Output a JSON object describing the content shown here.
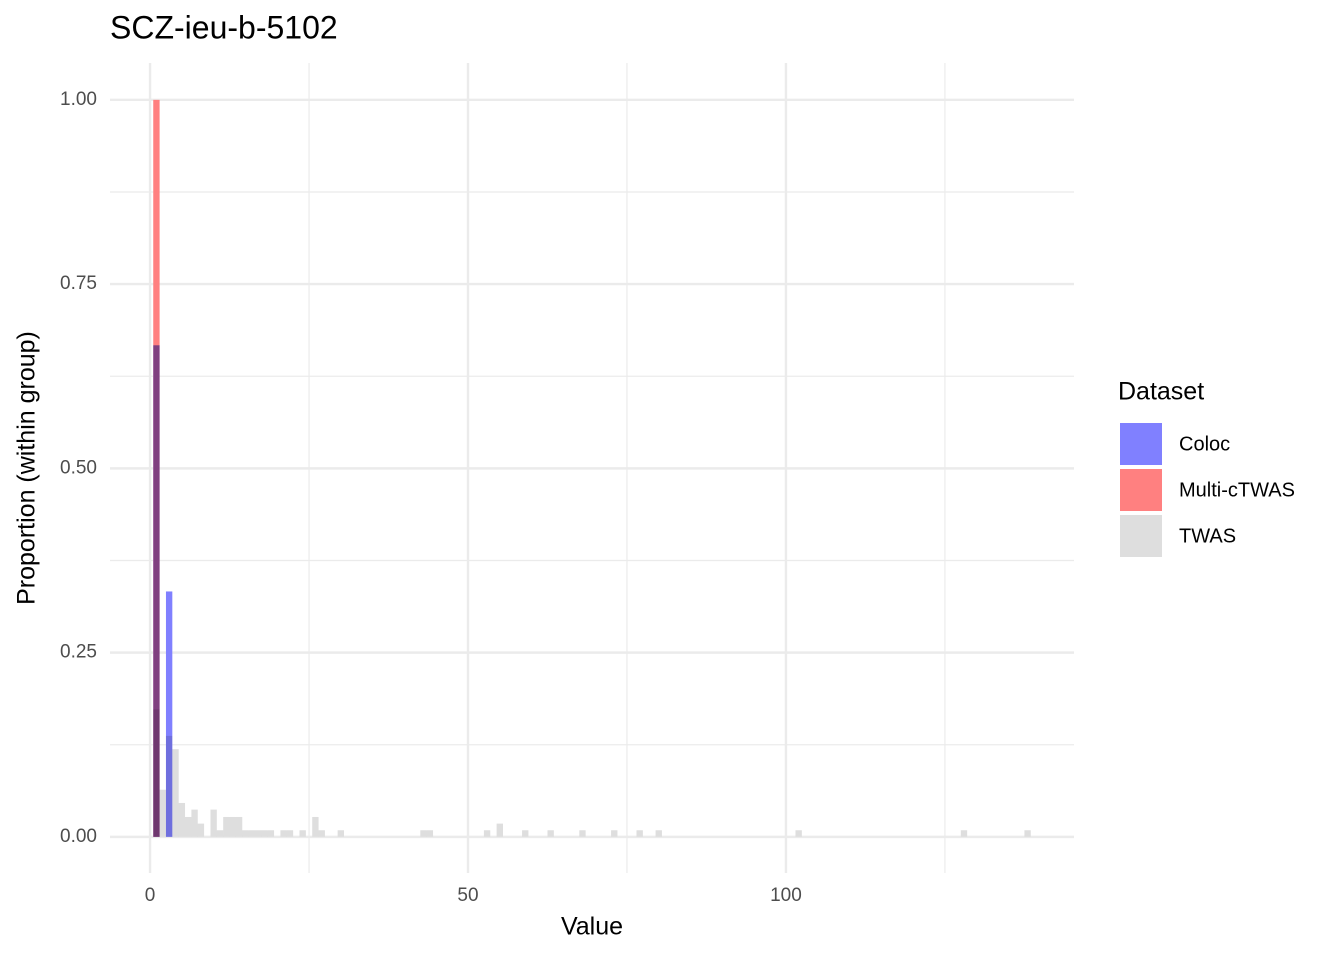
{
  "chart_data": {
    "type": "histogram",
    "title": "SCZ-ieu-b-5102",
    "x_label": "Value",
    "y_label": "Proportion (within group)",
    "legend_title": "Dataset",
    "legend_position": "right",
    "xlim": [
      -6.3,
      145.3
    ],
    "ylim": [
      -0.049,
      1.05
    ],
    "xticks": [
      0,
      50,
      100
    ],
    "yticks": [
      {
        "value": 0,
        "label": "0.00"
      },
      {
        "value": 0.25,
        "label": "0.25"
      },
      {
        "value": 0.5,
        "label": "0.50"
      },
      {
        "value": 0.75,
        "label": "0.75"
      },
      {
        "value": 1,
        "label": "1.00"
      }
    ],
    "x_minor_ticks": [
      25,
      75,
      125
    ],
    "y_minor_ticks": [
      0.125,
      0.375,
      0.625,
      0.875
    ],
    "grid": true,
    "series": [
      {
        "name": "Coloc",
        "color": "#8080ff",
        "bins": [
          0.5,
          1.5,
          2.5,
          3.5
        ],
        "values": [
          0.667,
          0,
          0.333
        ]
      },
      {
        "name": "Multi-cTWAS",
        "color": "#ff8080",
        "bins": [
          0.5,
          1.5
        ],
        "values": [
          1.0
        ]
      },
      {
        "name": "TWAS",
        "color": "#dedede",
        "bins": [
          0.5,
          1.5,
          2.5,
          3.5,
          4.5,
          5.5,
          6.5,
          7.5,
          8.5,
          9.5,
          10.5,
          11.5,
          12.5,
          13.5,
          14.5,
          15.5,
          16.5,
          17.5,
          18.5,
          19.5,
          20.5,
          21.5,
          22.5,
          23.5,
          24.5,
          25.5,
          26.5,
          27.5,
          28.5,
          29.5,
          30.5,
          31.5,
          32.5,
          33.5,
          34.5,
          35.5,
          36.5,
          37.5,
          38.5,
          39.5,
          40.5,
          41.5,
          42.5,
          43.5,
          44.5,
          45.5,
          46.5,
          47.5,
          48.5,
          49.5,
          50.5,
          51.5,
          52.5,
          53.5,
          54.5,
          55.5,
          56.5,
          57.5,
          58.5,
          59.5,
          60.5,
          61.5,
          62.5,
          63.5,
          64.5,
          65.5,
          66.5,
          67.5,
          68.5,
          69.5,
          70.5,
          71.5,
          72.5,
          73.5,
          74.5,
          75.5,
          76.5,
          77.5,
          78.5,
          79.5,
          80.5,
          81.5,
          82.5,
          83.5,
          84.5,
          85.5,
          86.5,
          87.5,
          88.5,
          89.5,
          90.5,
          91.5,
          92.5,
          93.5,
          94.5,
          95.5,
          96.5,
          97.5,
          98.5,
          99.5,
          100.5,
          101.5,
          102.5,
          103.5,
          104.5,
          105.5,
          106.5,
          107.5,
          108.5,
          109.5,
          110.5,
          111.5,
          112.5,
          113.5,
          114.5,
          115.5,
          116.5,
          117.5,
          118.5,
          119.5,
          120.5,
          121.5,
          122.5,
          123.5,
          124.5,
          125.5,
          126.5,
          127.5,
          128.5,
          129.5,
          130.5,
          131.5,
          132.5,
          133.5,
          134.5,
          135.5,
          136.5,
          137.5,
          138.5
        ],
        "values": [
          0.173,
          0.064,
          0.137,
          0.119,
          0.046,
          0.027,
          0.037,
          0.018,
          0,
          0.037,
          0.009,
          0.027,
          0.027,
          0.027,
          0.009,
          0.009,
          0.009,
          0.009,
          0.009,
          0,
          0.009,
          0.009,
          0,
          0.009,
          0,
          0.027,
          0.009,
          0,
          0,
          0.009,
          0,
          0,
          0,
          0,
          0,
          0,
          0,
          0,
          0,
          0,
          0,
          0,
          0.009,
          0.009,
          0,
          0,
          0,
          0,
          0,
          0,
          0,
          0,
          0.009,
          0,
          0.018,
          0,
          0,
          0,
          0.009,
          0,
          0,
          0,
          0.009,
          0,
          0,
          0,
          0,
          0.009,
          0,
          0,
          0,
          0,
          0.009,
          0,
          0,
          0,
          0.009,
          0,
          0,
          0.009,
          0,
          0,
          0,
          0,
          0,
          0,
          0,
          0,
          0,
          0,
          0,
          0,
          0,
          0,
          0,
          0,
          0,
          0,
          0,
          0,
          0,
          0.009,
          0,
          0,
          0,
          0,
          0,
          0,
          0,
          0,
          0,
          0,
          0,
          0,
          0,
          0,
          0,
          0,
          0,
          0,
          0,
          0,
          0,
          0,
          0,
          0,
          0,
          0.009,
          0,
          0,
          0,
          0,
          0,
          0,
          0,
          0,
          0,
          0.009
        ]
      }
    ]
  }
}
